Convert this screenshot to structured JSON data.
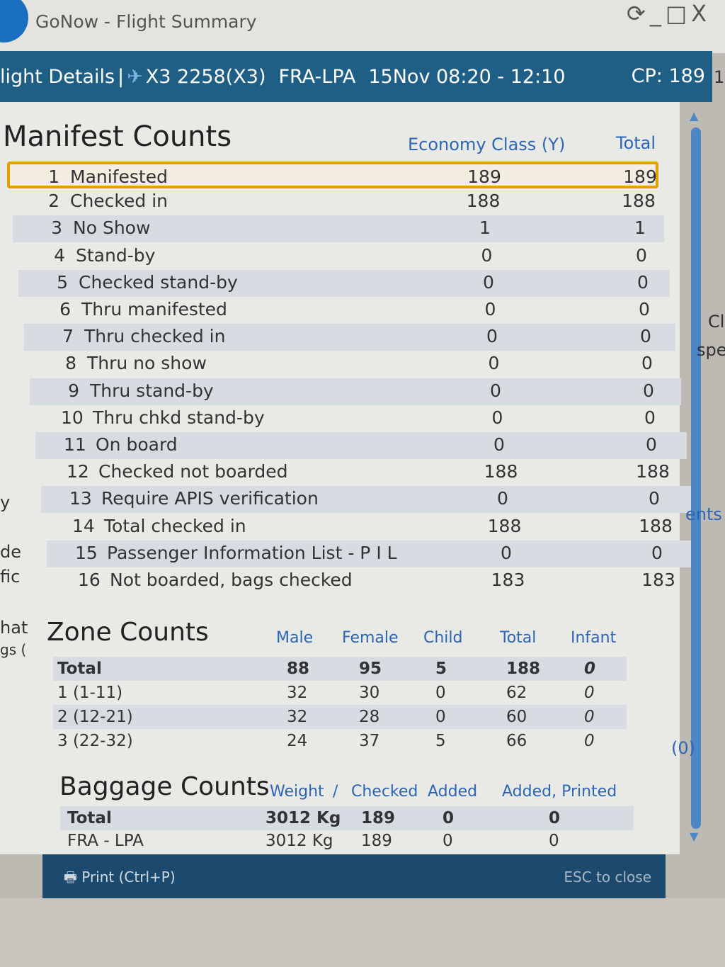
{
  "window": {
    "title": "GoNow - Flight Summary",
    "controls": [
      "refresh",
      "minimize",
      "maximize",
      "close"
    ]
  },
  "header": {
    "section": "light Details",
    "separator": "|",
    "flight": "X3 2258(X3)",
    "route": "FRA-LPA",
    "date_time": "15Nov 08:20 - 12:10",
    "cp": "CP: 189"
  },
  "manifest": {
    "title": "Manifest Counts",
    "columns": [
      "Economy Class (Y)",
      "Total"
    ],
    "rows": [
      {
        "n": "1",
        "label": "Manifested",
        "y": "189",
        "total": "189"
      },
      {
        "n": "2",
        "label": "Checked in",
        "y": "188",
        "total": "188"
      },
      {
        "n": "3",
        "label": "No Show",
        "y": "1",
        "total": "1"
      },
      {
        "n": "4",
        "label": "Stand-by",
        "y": "0",
        "total": "0"
      },
      {
        "n": "5",
        "label": "Checked stand-by",
        "y": "0",
        "total": "0"
      },
      {
        "n": "6",
        "label": "Thru manifested",
        "y": "0",
        "total": "0"
      },
      {
        "n": "7",
        "label": "Thru checked in",
        "y": "0",
        "total": "0"
      },
      {
        "n": "8",
        "label": "Thru no show",
        "y": "0",
        "total": "0"
      },
      {
        "n": "9",
        "label": "Thru stand-by",
        "y": "0",
        "total": "0"
      },
      {
        "n": "10",
        "label": "Thru chkd stand-by",
        "y": "0",
        "total": "0"
      },
      {
        "n": "11",
        "label": "On board",
        "y": "0",
        "total": "0"
      },
      {
        "n": "12",
        "label": "Checked not boarded",
        "y": "188",
        "total": "188"
      },
      {
        "n": "13",
        "label": "Require APIS verification",
        "y": "0",
        "total": "0"
      },
      {
        "n": "14",
        "label": "Total checked in",
        "y": "188",
        "total": "188"
      },
      {
        "n": "15",
        "label": "Passenger Information List - P I L",
        "y": "0",
        "total": "0"
      },
      {
        "n": "16",
        "label": "Not boarded, bags checked",
        "y": "183",
        "total": "183"
      }
    ]
  },
  "zones": {
    "title": "Zone Counts",
    "columns": [
      "Male",
      "Female",
      "Child",
      "Total",
      "Infant"
    ],
    "rows": [
      {
        "label": "Total",
        "male": "88",
        "female": "95",
        "child": "5",
        "total": "188",
        "infant": "0"
      },
      {
        "label": "1 (1-11)",
        "male": "32",
        "female": "30",
        "child": "0",
        "total": "62",
        "infant": "0"
      },
      {
        "label": "2 (12-21)",
        "male": "32",
        "female": "28",
        "child": "0",
        "total": "60",
        "infant": "0"
      },
      {
        "label": "3 (22-32)",
        "male": "24",
        "female": "37",
        "child": "5",
        "total": "66",
        "infant": "0"
      }
    ]
  },
  "baggage": {
    "title": "Baggage Counts",
    "columns": [
      "Weight",
      "/",
      "Checked",
      "Added",
      "Added, Printed"
    ],
    "rows": [
      {
        "label": "Total",
        "weight": "3012 Kg",
        "checked": "189",
        "added": "0",
        "printed": "0"
      },
      {
        "label": "FRA - LPA",
        "weight": "3012 Kg",
        "checked": "189",
        "added": "0",
        "printed": "0"
      }
    ]
  },
  "footer": {
    "print": "Print (Ctrl+P)",
    "esc": "ESC to close"
  },
  "background_fragments": {
    "right": [
      "Cl",
      "spe",
      "ents",
      "(0)"
    ],
    "left": [
      "y",
      "de",
      "fic",
      "hat",
      "gs ("
    ],
    "edge": "1"
  }
}
